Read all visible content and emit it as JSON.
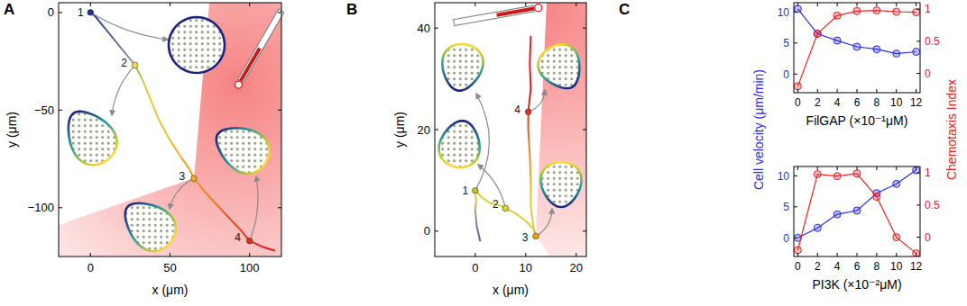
{
  "chart_data": [
    {
      "panel": "A",
      "type": "line",
      "xlabel": "x (μm)",
      "ylabel": "y (μm)",
      "xlim": [
        -20,
        120
      ],
      "ylim": [
        -125,
        5
      ],
      "xticks": [
        0,
        50,
        100
      ],
      "yticks": [
        {
          "value": -100,
          "label": "−100"
        },
        {
          "value": -50,
          "label": "−50"
        },
        0
      ],
      "x": [
        0,
        3,
        7,
        12,
        17,
        22,
        28,
        33,
        38,
        43,
        49,
        56,
        62,
        65,
        72,
        80,
        88,
        95,
        100,
        108,
        116
      ],
      "values": [
        0,
        -2,
        -6,
        -11,
        -16,
        -21,
        -27,
        -35,
        -45,
        -55,
        -64,
        -73,
        -80,
        -85,
        -92,
        -99,
        -106,
        -112,
        -117,
        -120,
        -122
      ],
      "annotations": [
        {
          "label": "1",
          "x": 0,
          "y": 0
        },
        {
          "label": "2",
          "x": 28,
          "y": -27
        },
        {
          "label": "3",
          "x": 65,
          "y": -85
        },
        {
          "label": "4",
          "x": 100,
          "y": -117
        }
      ],
      "source": {
        "x": 93,
        "y": -37
      }
    },
    {
      "panel": "B",
      "type": "line",
      "xlabel": "x (μm)",
      "ylabel": "y (μm)",
      "xlim": [
        -8,
        22
      ],
      "ylim": [
        -5,
        45
      ],
      "xticks": [
        0,
        10,
        20
      ],
      "yticks": [
        0,
        20,
        40
      ],
      "x": [
        1,
        0.3,
        0,
        0.2,
        0,
        1.5,
        3,
        5,
        6,
        8,
        10,
        11.5,
        12,
        11.5,
        11,
        11,
        10.8,
        10.5,
        10.5,
        11,
        10.8,
        11
      ],
      "values": [
        -2,
        1,
        4,
        6,
        8,
        6.5,
        5.5,
        5,
        4.5,
        3.5,
        2,
        0.5,
        -1,
        1,
        5,
        10,
        15,
        20,
        23.5,
        28,
        33,
        38.5
      ],
      "annotations": [
        {
          "label": "1",
          "x": 0,
          "y": 8
        },
        {
          "label": "2",
          "x": 6,
          "y": 4.5
        },
        {
          "label": "3",
          "x": 12,
          "y": -1
        },
        {
          "label": "4",
          "x": 10.5,
          "y": 23.5
        }
      ],
      "source": {
        "x": 12.5,
        "y": 44
      }
    },
    {
      "panel": "C",
      "type": "line",
      "xlabel": "FilGAP (×10⁻¹μM)",
      "x": [
        0,
        2,
        4,
        6,
        8,
        10,
        12
      ],
      "xlim": [
        -0.4,
        12.4
      ],
      "xticks": [
        0,
        2,
        4,
        6,
        8,
        10,
        12
      ],
      "ylim": [
        -3,
        11.5
      ],
      "yticks": [
        0,
        5,
        10
      ],
      "y2lim": [
        -0.3,
        1.1
      ],
      "y2ticks": [
        0,
        0.5,
        1
      ],
      "series": [
        {
          "color": "#2a2af0",
          "marker": "circle",
          "values": [
            10.5,
            6.5,
            5.4,
            4.4,
            4.0,
            3.3,
            3.6
          ]
        },
        {
          "color": "#f02020",
          "marker": "circle",
          "axis": "y2",
          "values": [
            -0.2,
            0.62,
            0.9,
            0.97,
            0.98,
            0.96,
            0.95
          ]
        }
      ]
    },
    {
      "type": "line",
      "xlabel": "PI3K (×10⁻²μM)",
      "ylabel": "Cell velocity (μm/min)",
      "y2label": "Chemotaxis Index",
      "x": [
        0,
        2,
        4,
        6,
        8,
        10,
        12
      ],
      "xlim": [
        -0.4,
        12.4
      ],
      "xticks": [
        0,
        2,
        4,
        6,
        8,
        10,
        12
      ],
      "ylim": [
        -3,
        11.5
      ],
      "yticks": [
        0,
        5,
        10
      ],
      "y2lim": [
        -0.3,
        1.1
      ],
      "y2ticks": [
        0,
        0.5,
        1
      ],
      "series": [
        {
          "color": "#2a2af0",
          "marker": "circle",
          "values": [
            0,
            1.6,
            3.8,
            4.4,
            7.2,
            8.7,
            10.9
          ]
        },
        {
          "color": "#f02020",
          "marker": "circle",
          "axis": "y2",
          "values": [
            -0.2,
            0.98,
            0.95,
            0.99,
            0.63,
            0.0,
            -0.25
          ]
        }
      ]
    }
  ]
}
